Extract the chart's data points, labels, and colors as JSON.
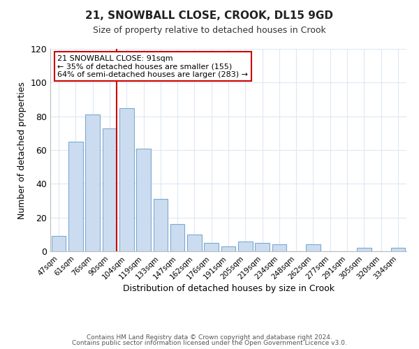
{
  "title": "21, SNOWBALL CLOSE, CROOK, DL15 9GD",
  "subtitle": "Size of property relative to detached houses in Crook",
  "xlabel": "Distribution of detached houses by size in Crook",
  "ylabel": "Number of detached properties",
  "bar_labels": [
    "47sqm",
    "61sqm",
    "76sqm",
    "90sqm",
    "104sqm",
    "119sqm",
    "133sqm",
    "147sqm",
    "162sqm",
    "176sqm",
    "191sqm",
    "205sqm",
    "219sqm",
    "234sqm",
    "248sqm",
    "262sqm",
    "277sqm",
    "291sqm",
    "305sqm",
    "320sqm",
    "334sqm"
  ],
  "bar_values": [
    9,
    65,
    81,
    73,
    85,
    61,
    31,
    16,
    10,
    5,
    3,
    6,
    5,
    4,
    0,
    4,
    0,
    0,
    2,
    0,
    2
  ],
  "bar_color": "#ccdcf0",
  "bar_edge_color": "#7aaad0",
  "vline_x_index": 3,
  "vline_color": "#cc0000",
  "ylim": [
    0,
    120
  ],
  "yticks": [
    0,
    20,
    40,
    60,
    80,
    100,
    120
  ],
  "annotation_line1": "21 SNOWBALL CLOSE: 91sqm",
  "annotation_line2": "← 35% of detached houses are smaller (155)",
  "annotation_line3": "64% of semi-detached houses are larger (283) →",
  "annotation_box_edge": "#cc0000",
  "footer_line1": "Contains HM Land Registry data © Crown copyright and database right 2024.",
  "footer_line2": "Contains public sector information licensed under the Open Government Licence v3.0.",
  "background_color": "#ffffff",
  "grid_color": "#dce8f5"
}
